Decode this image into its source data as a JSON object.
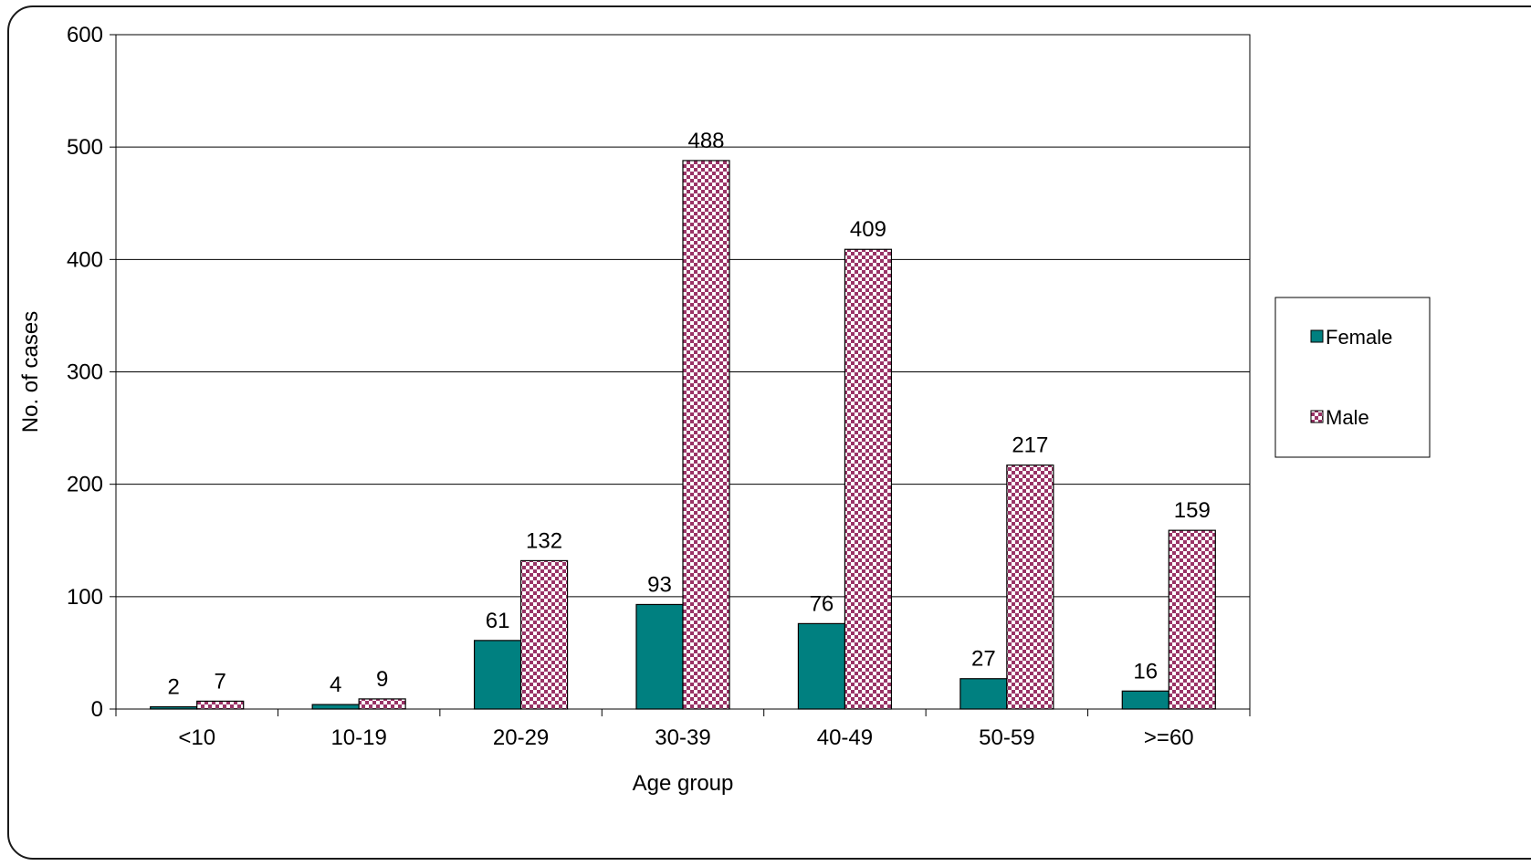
{
  "chart_data": {
    "type": "bar",
    "categories": [
      "<10",
      "10-19",
      "20-29",
      "30-39",
      "40-49",
      "50-59",
      ">=60"
    ],
    "series": [
      {
        "name": "Female",
        "values": [
          2,
          4,
          61,
          93,
          76,
          27,
          16
        ],
        "color": "#008080",
        "pattern": "solid"
      },
      {
        "name": "Male",
        "values": [
          7,
          9,
          132,
          488,
          409,
          217,
          159
        ],
        "color": "#993366",
        "pattern": "checkerboard"
      }
    ],
    "xlabel": "Age group",
    "ylabel": "No. of cases",
    "ylim": [
      0,
      600
    ],
    "yticks": [
      0,
      100,
      200,
      300,
      400,
      500,
      600
    ],
    "grid": true,
    "legend_position": "right",
    "data_labels": true
  }
}
